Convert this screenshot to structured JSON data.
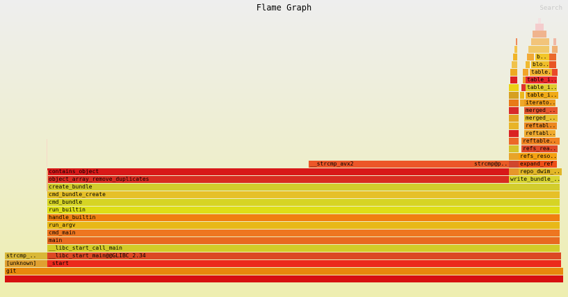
{
  "header": {
    "title": "Flame Graph",
    "search_label": "Search"
  },
  "frames": [
    {
      "label": "git",
      "name": "frame-git",
      "color": "#e8880c"
    },
    {
      "label": "[unknown]",
      "name": "frame-unknown",
      "color": "#e0a030"
    },
    {
      "label": "strcmp_..",
      "name": "frame-strcmp-left",
      "color": "#d8b838"
    },
    {
      "label": "_start",
      "name": "frame-start",
      "color": "#ec2a1c"
    },
    {
      "label": "__libc_start_main@@GLIBC_2.34",
      "name": "frame-libc-start-main-glibc",
      "color": "#dc4824"
    },
    {
      "label": "__libc_start_call_main",
      "name": "frame-libc-start-call-main",
      "color": "#d2cc28"
    },
    {
      "label": "main",
      "name": "frame-main",
      "color": "#e86a20"
    },
    {
      "label": "cmd_main",
      "name": "frame-cmd-main",
      "color": "#ee7620"
    },
    {
      "label": "run_argv",
      "name": "frame-run-argv",
      "color": "#e8b818"
    },
    {
      "label": "handle_builtin",
      "name": "frame-handle-builtin",
      "color": "#f08010"
    },
    {
      "label": "run_builtin",
      "name": "frame-run-builtin",
      "color": "#dede16"
    },
    {
      "label": "cmd_bundle",
      "name": "frame-cmd-bundle",
      "color": "#d6d424"
    },
    {
      "label": "cmd_bundle_create",
      "name": "frame-cmd-bundle-create",
      "color": "#e6c028"
    },
    {
      "label": "create_bundle",
      "name": "frame-create-bundle",
      "color": "#d2cc2c"
    },
    {
      "label": "object_array_remove_duplicates",
      "name": "frame-object-array-remove-duplicates",
      "color": "#d82c20"
    },
    {
      "label": "write_bundle_..",
      "name": "frame-write-bundle",
      "color": "#d8d430"
    },
    {
      "label": "contains_object",
      "name": "frame-contains-object",
      "color": "#d81818"
    },
    {
      "label": "repo_dwim_..",
      "name": "frame-repo-dwim",
      "color": "#e2b626"
    },
    {
      "label": "__strcmp_avx2",
      "name": "frame-strcmp-avx2",
      "color": "#ec5628"
    },
    {
      "label": "strcmp@p..",
      "name": "frame-strcmp-plt",
      "color": "#e85a26"
    },
    {
      "label": "expand_ref",
      "name": "frame-expand-ref",
      "color": "#ee4e18"
    },
    {
      "label": "refs_reso..",
      "name": "frame-refs-resolve",
      "color": "#f4a010"
    },
    {
      "label": "refs_rea..",
      "name": "frame-refs-read",
      "color": "#e04a28"
    },
    {
      "label": "reftable..",
      "name": "frame-reftable-1",
      "color": "#f08222"
    },
    {
      "label": "reftabl..",
      "name": "frame-reftable-2",
      "color": "#f0aa2e"
    },
    {
      "label": "reftabl..",
      "name": "frame-reftable-3",
      "color": "#ec8820"
    },
    {
      "label": "merged_..",
      "name": "frame-merged-1",
      "color": "#e8c030"
    },
    {
      "label": "merged_..",
      "name": "frame-merged-2",
      "color": "#e6562c"
    },
    {
      "label": "iterato..",
      "name": "frame-iterator",
      "color": "#ec9a1c"
    },
    {
      "label": "table_i..",
      "name": "frame-table-iter-1",
      "color": "#f0aa16"
    },
    {
      "label": "table_i..",
      "name": "frame-table-iter-2",
      "color": "#e0cc2e"
    },
    {
      "label": "table_i..",
      "name": "frame-table-iter-3",
      "color": "#e8282a"
    },
    {
      "label": "table..",
      "name": "frame-table",
      "color": "#f2b230"
    },
    {
      "label": "blo..",
      "name": "frame-block",
      "color": "#eebe2a"
    },
    {
      "label": "b..",
      "name": "frame-b",
      "color": "#f2c628"
    }
  ]
}
